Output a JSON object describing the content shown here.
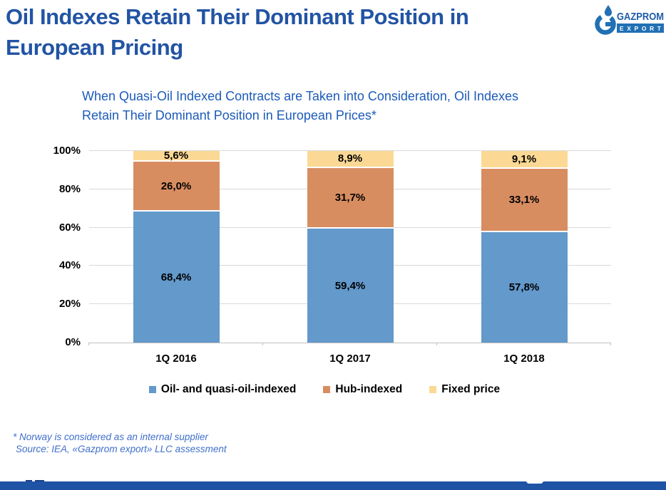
{
  "slide": {
    "title_lines": [
      "Oil Indexes Retain Their Dominant Position in",
      "European Pricing"
    ],
    "subtitle_lines": [
      "When Quasi-Oil Indexed Contracts are Taken into Consideration, Oil Indexes",
      "Retain Their Dominant Position in European Prices*"
    ],
    "footnotes": [
      "* Norway is considered as an internal supplier",
      "Source: IEA, «Gazprom export» LLC assessment"
    ]
  },
  "logo": {
    "brand": "GAZPROM",
    "sub_brand": "EXPORT",
    "icon": "gazprom-flame-icon",
    "icon_color": "#2170b4",
    "brand_color": "#1d5ca9"
  },
  "colors": {
    "title": "#2254a4",
    "subtitle": "#1c5bb8",
    "footnote": "#3f6fcb",
    "gridline": "#d9d9d9",
    "axis_line": "#bfbfbf",
    "footer_bar": "#1e53a5"
  },
  "chart_data": {
    "type": "bar",
    "stacked": true,
    "title": "",
    "xlabel": "",
    "ylabel": "",
    "categories": [
      "1Q 2016",
      "1Q 2017",
      "1Q 2018"
    ],
    "series": [
      {
        "name": "Oil- and quasi-oil-indexed",
        "color": "#6399cb",
        "values": [
          68.4,
          59.4,
          57.8
        ]
      },
      {
        "name": "Hub-indexed",
        "color": "#d88d61",
        "values": [
          26.0,
          31.7,
          33.1
        ]
      },
      {
        "name": "Fixed price",
        "color": "#fbd995",
        "values": [
          5.6,
          8.9,
          9.1
        ]
      }
    ],
    "data_labels": [
      [
        "68,4%",
        "59,4%",
        "57,8%"
      ],
      [
        "26,0%",
        "31,7%",
        "33,1%"
      ],
      [
        "5,6%",
        "8,9%",
        "9,1%"
      ]
    ],
    "value_suffix": "%",
    "decimal_separator": ",",
    "ylim": [
      0,
      100
    ],
    "yticks": [
      0,
      20,
      40,
      60,
      80,
      100
    ],
    "ytick_labels": [
      "0%",
      "20%",
      "40%",
      "60%",
      "80%",
      "100%"
    ],
    "grid": true,
    "legend_position": "bottom"
  }
}
